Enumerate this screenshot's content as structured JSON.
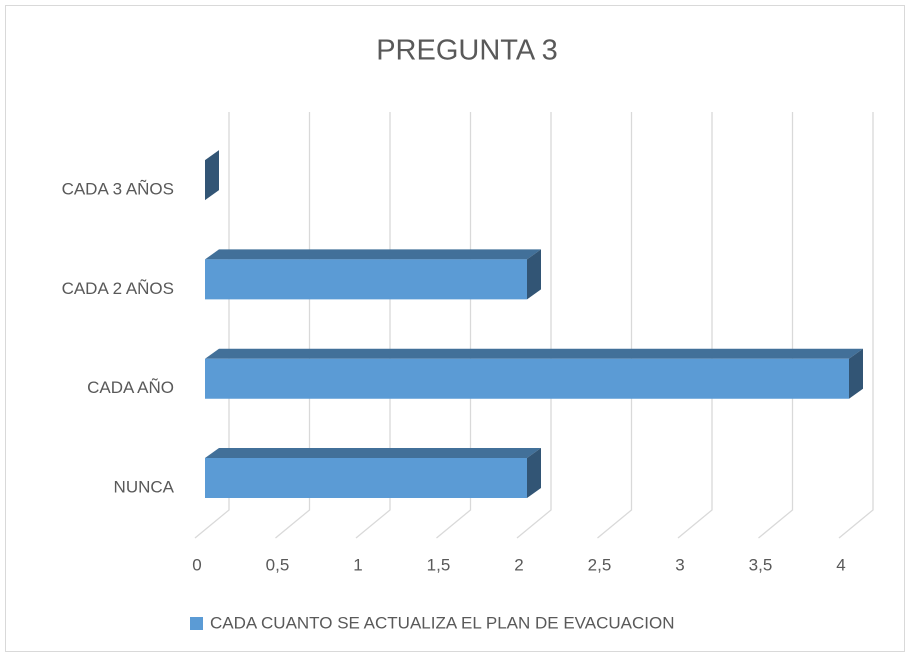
{
  "chart_data": {
    "type": "bar3d",
    "title": "PREGUNTA 3",
    "categories": [
      "NUNCA",
      "CADA AÑO",
      "CADA 2 AÑOS",
      "CADA 3 AÑOS"
    ],
    "series": [
      {
        "name": "CADA CUANTO SE ACTUALIZA EL PLAN DE EVACUACION",
        "color": "#5b9bd5",
        "values": [
          2,
          4,
          2,
          0
        ]
      }
    ],
    "xlim": [
      0,
      4
    ],
    "xticks": [
      0,
      {
        "value": 0.5,
        "label": "0,5"
      },
      1,
      {
        "value": 1.5,
        "label": "1,5"
      },
      2,
      {
        "value": 2.5,
        "label": "2,5"
      },
      3,
      {
        "value": 3.5,
        "label": "3,5"
      },
      4
    ],
    "grid": true,
    "legend": "bottom"
  }
}
